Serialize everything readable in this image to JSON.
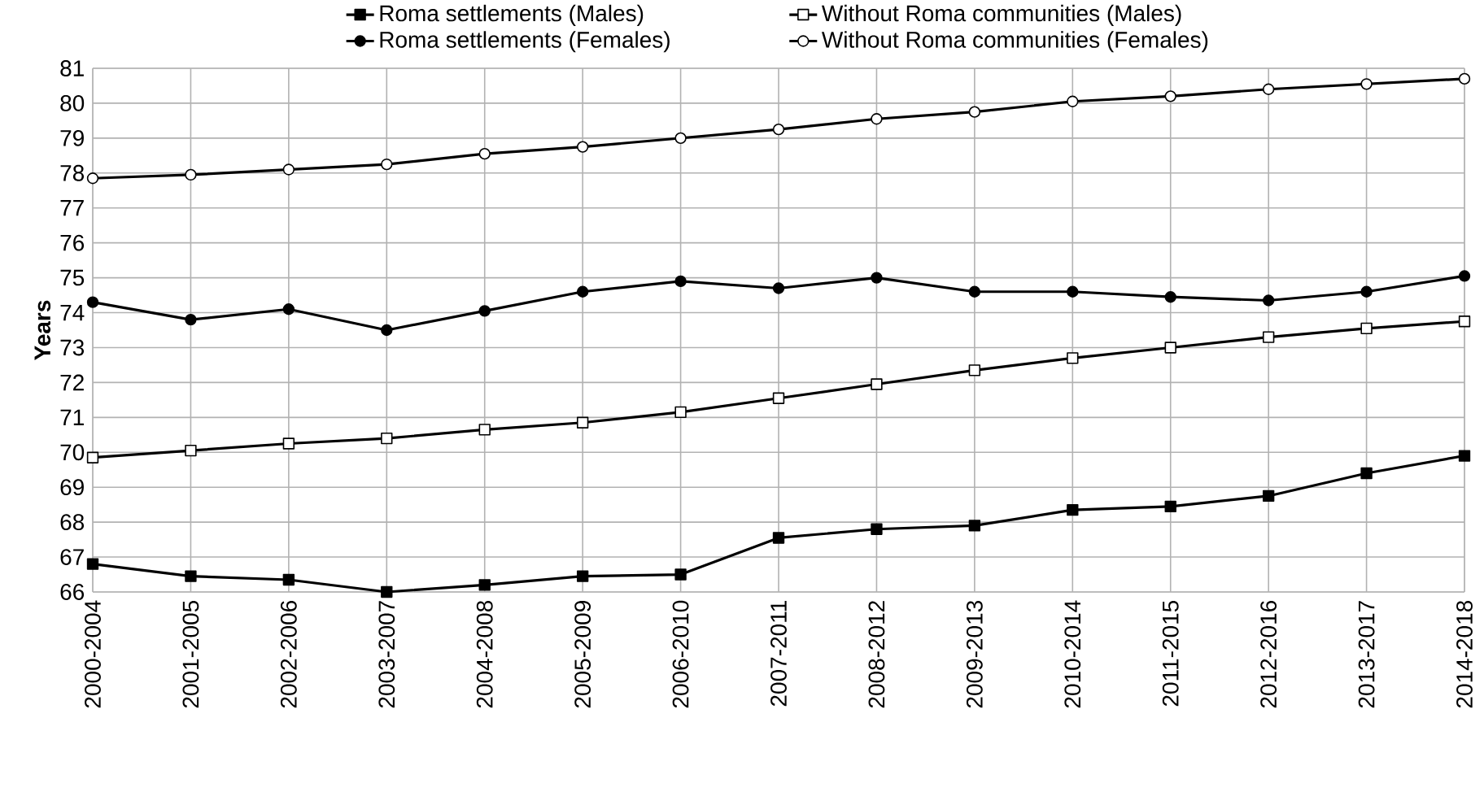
{
  "chart_data": {
    "type": "line",
    "ylabel": "Years",
    "categories": [
      "2000-2004",
      "2001-2005",
      "2002-2006",
      "2003-2007",
      "2004-2008",
      "2005-2009",
      "2006-2010",
      "2007-2011",
      "2008-2012",
      "2009-2013",
      "2010-2014",
      "2011-2015",
      "2012-2016",
      "2013-2017",
      "2014-2018"
    ],
    "series": [
      {
        "name": "Roma settlements (Males)",
        "color": "#000000",
        "marker": "square",
        "values": [
          66.8,
          66.45,
          66.35,
          66.0,
          66.2,
          66.45,
          66.5,
          67.55,
          67.8,
          67.9,
          68.35,
          68.45,
          68.75,
          69.4,
          69.9
        ]
      },
      {
        "name": "Without Roma communities (Males)",
        "color": "#000000",
        "marker": "square",
        "values": [
          69.85,
          70.05,
          70.25,
          70.4,
          70.65,
          70.85,
          71.15,
          71.55,
          71.95,
          72.35,
          72.7,
          73.0,
          73.3,
          73.55,
          73.75
        ]
      },
      {
        "name": "Roma settlements (Females)",
        "color": "#000000",
        "marker": "circle",
        "values": [
          74.3,
          73.8,
          74.1,
          73.5,
          74.05,
          74.6,
          74.9,
          74.7,
          75.0,
          74.6,
          74.6,
          74.45,
          74.35,
          74.6,
          75.05
        ]
      },
      {
        "name": "Without Roma communities (Females)",
        "color": "#000000",
        "marker": "circle",
        "values": [
          77.85,
          77.95,
          78.1,
          78.25,
          78.55,
          78.75,
          79.0,
          79.25,
          79.55,
          79.75,
          80.05,
          80.2,
          80.4,
          80.55,
          80.7
        ]
      }
    ],
    "ylim": [
      66,
      81
    ],
    "yticks": [
      66,
      67,
      68,
      69,
      70,
      71,
      72,
      73,
      74,
      75,
      76,
      77,
      78,
      79,
      80,
      81
    ],
    "grid": true,
    "legend": "top",
    "line_style": "solid"
  }
}
